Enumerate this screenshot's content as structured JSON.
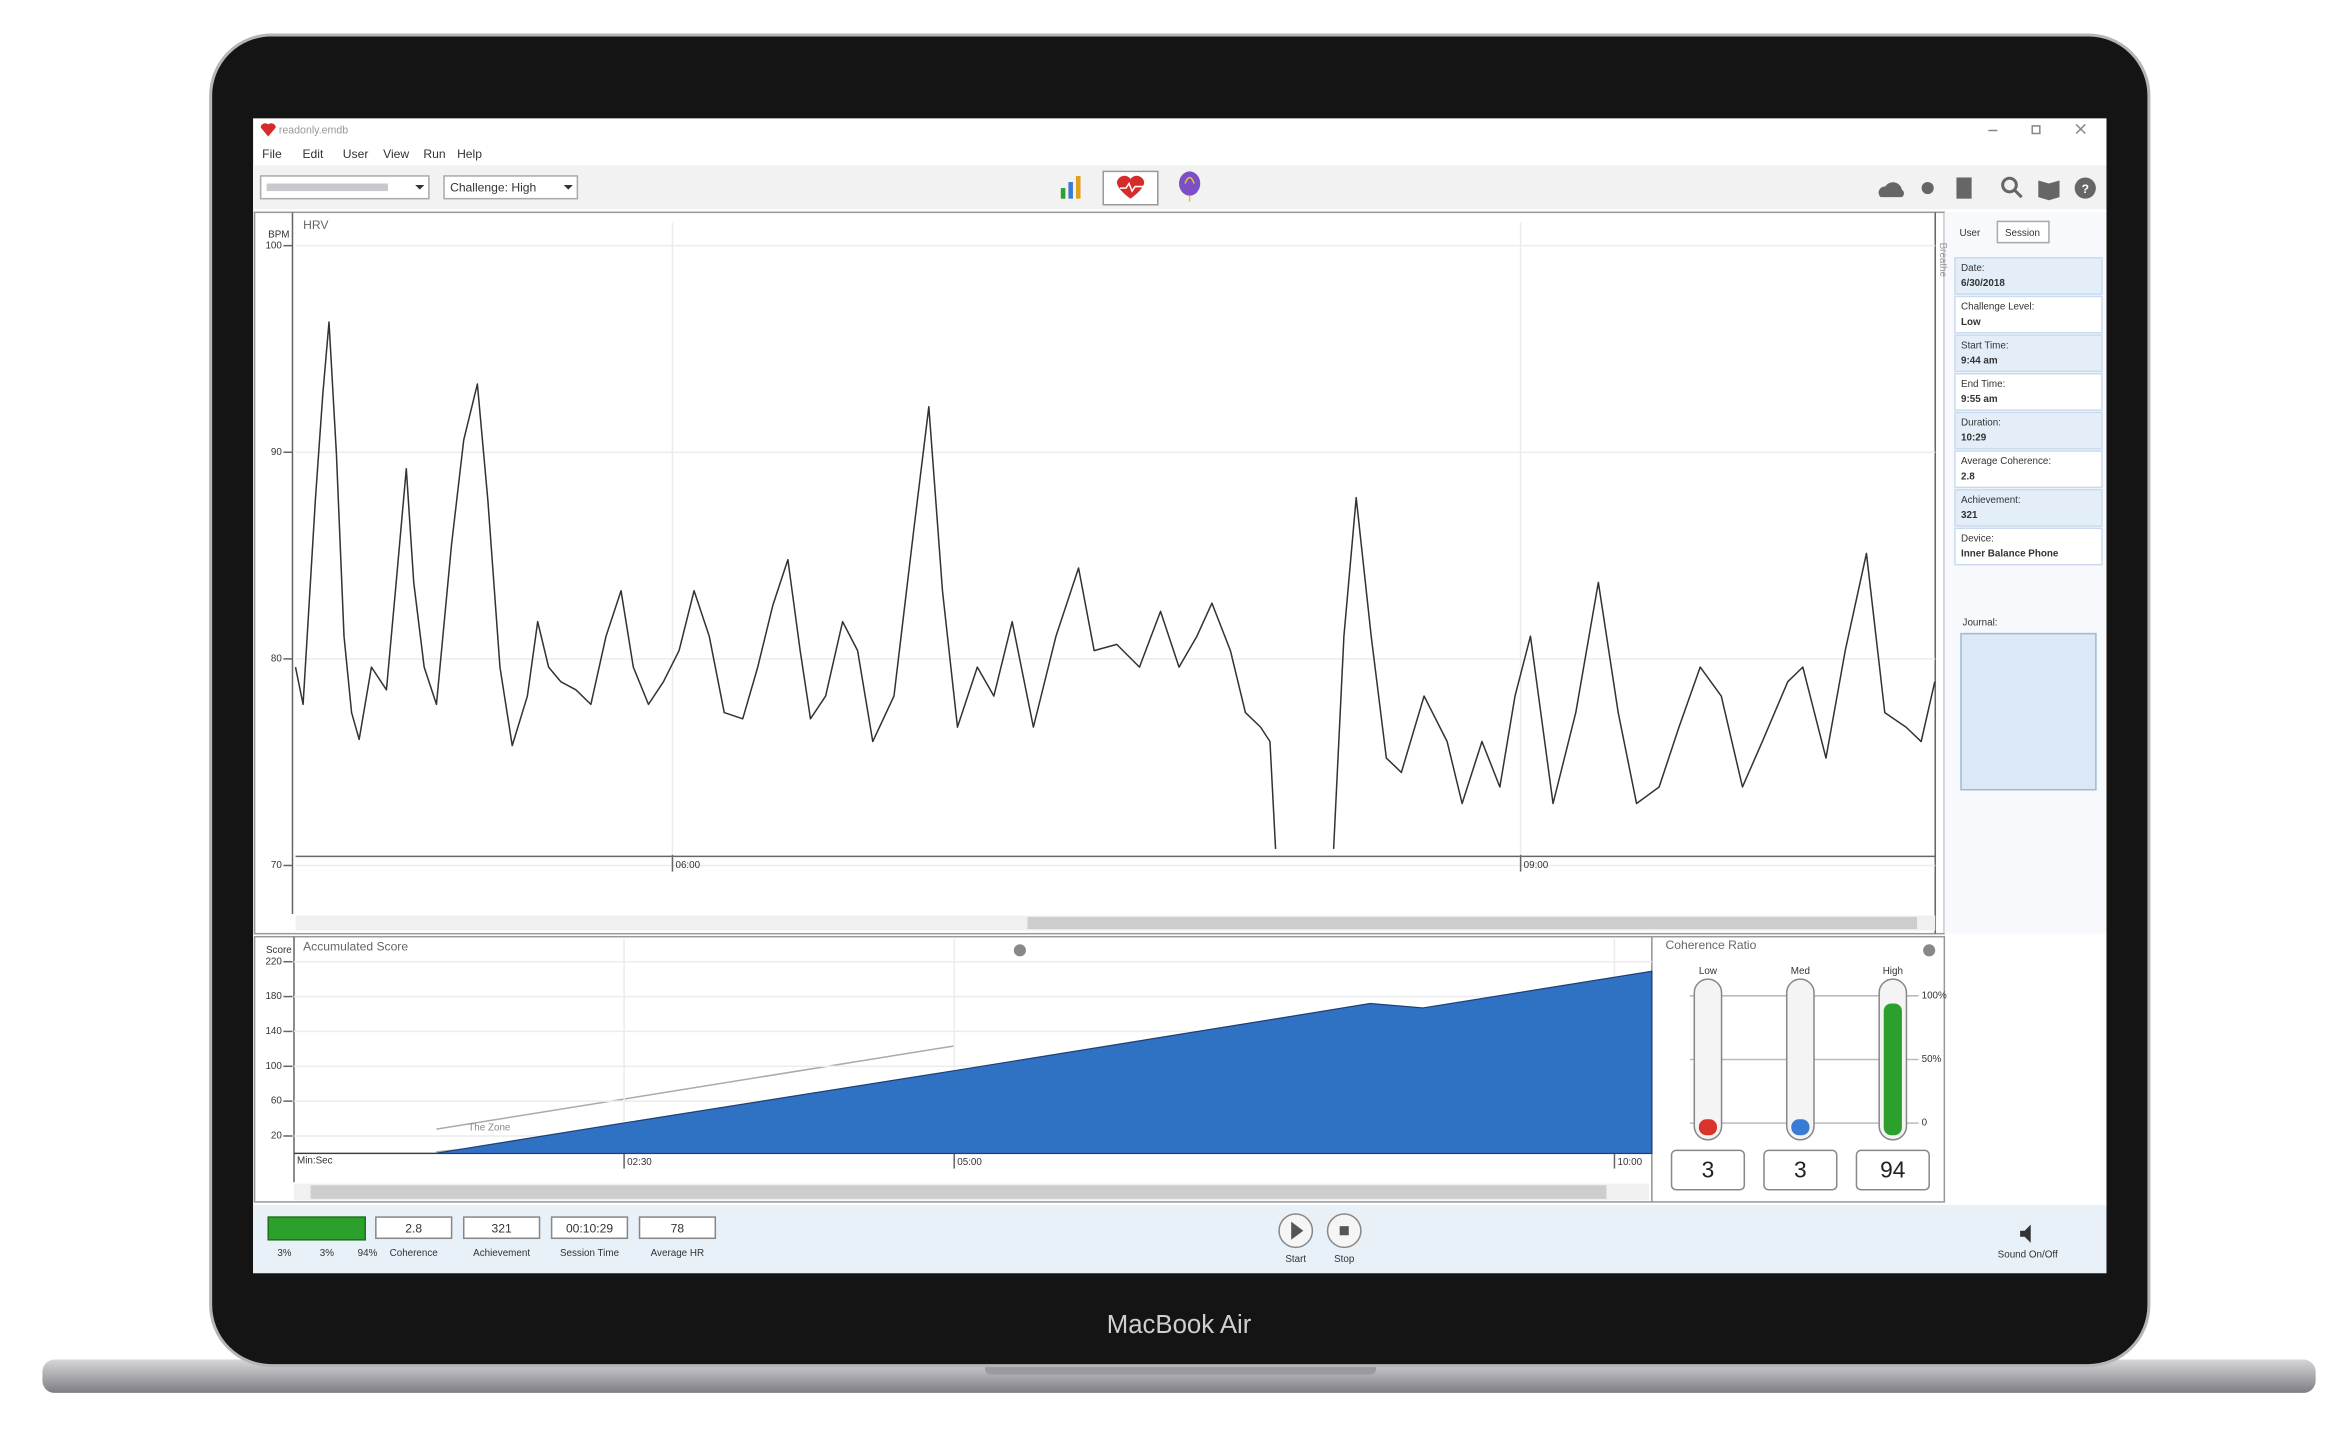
{
  "chart_data": [
    {
      "type": "line",
      "title": "HRV",
      "y_label": "BPM",
      "x": [
        280,
        281.6,
        284.2,
        285.8,
        287.1,
        288.7,
        290.3,
        291.9,
        293.5,
        296.1,
        299.3,
        301.5,
        303.5,
        305.1,
        307.3,
        309.9,
        313.1,
        315.7,
        318.6,
        320.8,
        323.4,
        326,
        329.2,
        331.4,
        333.7,
        336.3,
        339.5,
        342.7,
        345.9,
        349.1,
        351.7,
        354.9,
        358.1,
        361.4,
        364.6,
        367.8,
        371,
        374.9,
        378.1,
        381.3,
        384.5,
        387.1,
        389.3,
        392.5,
        396.1,
        399.3,
        402.5,
        407,
        411.2,
        414.4,
        417.3,
        420.5,
        424.7,
        428.2,
        432.1,
        436.6,
        441.4,
        446.2,
        449.5,
        454.3,
        459.1,
        463.6,
        467.5,
        471.3,
        474.5,
        478.4,
        481.6,
        484.8,
        486.8,
        488,
        494,
        500.3,
        502.5,
        505.1,
        508.3,
        511.5,
        514.7,
        519.5,
        524.4,
        527.6,
        531.8,
        535.6,
        538.8,
        542.1,
        546.9,
        551.7,
        556.5,
        560.7,
        564.6,
        569.4,
        573.6,
        578.1,
        582.6,
        587.1,
        591.3,
        596.7,
        599.9,
        604.8,
        608.9,
        613.4,
        617.3,
        621.8,
        625,
        627.9
      ],
      "values": [
        79.6,
        77.8,
        87.7,
        92.8,
        96.3,
        89.9,
        81.1,
        77.4,
        76.1,
        79.6,
        78.5,
        84.0,
        89.2,
        83.7,
        79.6,
        77.8,
        85.5,
        90.6,
        93.3,
        87.7,
        79.6,
        75.8,
        78.2,
        81.8,
        79.6,
        78.9,
        78.5,
        77.8,
        81.1,
        83.3,
        79.6,
        77.8,
        78.9,
        80.4,
        83.3,
        81.1,
        77.4,
        77.1,
        79.6,
        82.6,
        84.8,
        80.4,
        77.1,
        78.2,
        81.8,
        80.4,
        76.0,
        78.2,
        86.2,
        92.2,
        83.3,
        76.7,
        79.6,
        78.2,
        81.8,
        76.7,
        81.1,
        84.4,
        80.4,
        80.7,
        79.6,
        82.3,
        79.6,
        81.1,
        82.7,
        80.4,
        77.4,
        76.7,
        76.0,
        70.8,
        null,
        70.8,
        81.1,
        87.8,
        81.1,
        75.2,
        74.5,
        78.2,
        76.0,
        73.0,
        76.0,
        73.8,
        78.2,
        81.1,
        73.0,
        77.4,
        83.7,
        77.4,
        73.0,
        73.8,
        76.7,
        79.6,
        78.2,
        73.8,
        76.0,
        78.9,
        79.6,
        75.2,
        80.4,
        85.1,
        77.4,
        76.7,
        76.0,
        78.9
      ],
      "color": "#333333",
      "xlim": [
        280,
        628
      ],
      "ylim": [
        70,
        100
      ],
      "xticks": [
        {
          "value": 360,
          "label": "06:00"
        },
        {
          "value": 540,
          "label": "09:00"
        }
      ],
      "yticks": [
        70,
        80,
        90,
        100
      ],
      "grid": true
    },
    {
      "type": "area",
      "title": "Accumulated Score",
      "y_label": "Score",
      "x_label": "Min:Sec",
      "annotation": "The Zone",
      "x": [
        0,
        64,
        150,
        300,
        450,
        489,
        513,
        617
      ],
      "values": [
        0,
        0,
        35,
        95,
        156,
        172,
        167,
        209
      ],
      "color": "#2f72c4",
      "xlim": [
        0,
        617
      ],
      "ylim": [
        0,
        220
      ],
      "xticks": [
        {
          "value": 150,
          "label": "02:30"
        },
        {
          "value": 300,
          "label": "05:00"
        },
        {
          "value": 600,
          "label": "10:00"
        }
      ],
      "yticks": [
        20,
        60,
        100,
        140,
        180,
        220
      ],
      "grid": true
    },
    {
      "type": "bar",
      "title": "Coherence Ratio",
      "categories": [
        "Low",
        "Med",
        "High"
      ],
      "values": [
        3,
        3,
        94
      ],
      "colors": [
        "#d9342b",
        "#3a7bd5",
        "#2ca02c"
      ],
      "ylim": [
        0,
        100
      ],
      "yticks": [
        0,
        {
          "value": 50,
          "label": "50%"
        },
        {
          "value": 100,
          "label": "100%"
        }
      ]
    }
  ],
  "window": {
    "title": "readonly.emdb",
    "menu": [
      "File",
      "Edit",
      "User",
      "View",
      "Run",
      "Help"
    ],
    "challenge": "Challenge: High",
    "tabs": [
      "User",
      "Session"
    ],
    "side_label": "Breathe",
    "session": [
      {
        "label": "Date:",
        "value": "6/30/2018"
      },
      {
        "label": "Challenge Level:",
        "value": "Low"
      },
      {
        "label": "Start Time:",
        "value": "9:44 am"
      },
      {
        "label": "End Time:",
        "value": "9:55 am"
      },
      {
        "label": "Duration:",
        "value": "10:29"
      },
      {
        "label": "Average Coherence:",
        "value": "2.8"
      },
      {
        "label": "Achievement:",
        "value": "321"
      },
      {
        "label": "Device:",
        "value": "Inner Balance Phone"
      }
    ],
    "journal": "Journal:",
    "status": {
      "percents": [
        "3%",
        "3%",
        "94%"
      ],
      "readouts": [
        {
          "value": "2.8",
          "label": "Coherence"
        },
        {
          "value": "321",
          "label": "Achievement"
        },
        {
          "value": "00:10:29",
          "label": "Session Time"
        },
        {
          "value": "78",
          "label": "Average HR"
        }
      ],
      "controls": [
        "Start",
        "Stop"
      ],
      "sound": "Sound On/Off"
    },
    "device": "MacBook Air"
  }
}
